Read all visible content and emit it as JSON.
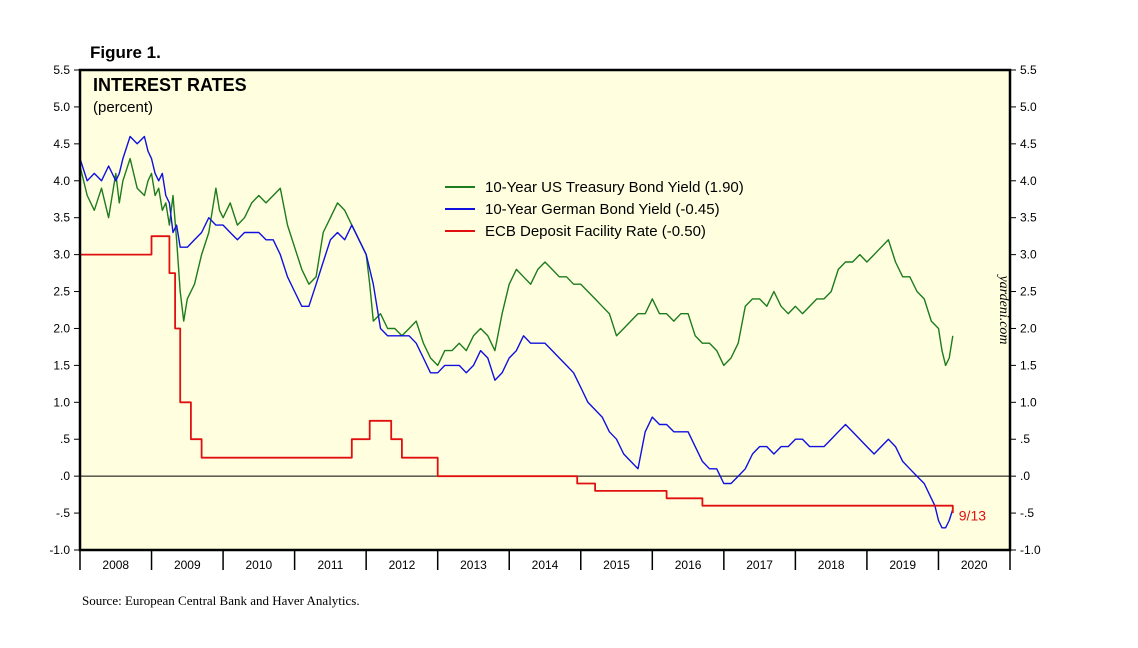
{
  "figure_label": "Figure 1.",
  "source": "Source: European Central Bank and Haver Analytics.",
  "watermark": "yardeni.com",
  "colors": {
    "background": "#ffffe0",
    "us": "#1e7b1e",
    "german": "#1010e0",
    "ecb": "#e01010"
  },
  "chart_data": {
    "type": "line",
    "title": "INTEREST RATES",
    "subtitle": "(percent)",
    "ylim": [
      -1.0,
      5.5
    ],
    "xlim": [
      2007.5,
      2020.5
    ],
    "y_ticks": [
      {
        "value": 5.5,
        "label": "5.5"
      },
      {
        "value": 5.0,
        "label": "5.0"
      },
      {
        "value": 4.5,
        "label": "4.5"
      },
      {
        "value": 4.0,
        "label": "4.0"
      },
      {
        "value": 3.5,
        "label": "3.5"
      },
      {
        "value": 3.0,
        "label": "3.0"
      },
      {
        "value": 2.5,
        "label": "2.5"
      },
      {
        "value": 2.0,
        "label": "2.0"
      },
      {
        "value": 1.5,
        "label": "1.5"
      },
      {
        "value": 1.0,
        "label": "1.0"
      },
      {
        "value": 0.5,
        "label": ".5"
      },
      {
        "value": 0.0,
        "label": ".0"
      },
      {
        "value": -0.5,
        "label": "-.5"
      },
      {
        "value": -1.0,
        "label": "-1.0"
      }
    ],
    "x_labels": [
      "2008",
      "2009",
      "2010",
      "2011",
      "2012",
      "2013",
      "2014",
      "2015",
      "2016",
      "2017",
      "2018",
      "2019",
      "2020"
    ],
    "annotation": {
      "text": "9/13",
      "x": 2019.7,
      "y": -0.52
    },
    "series": [
      {
        "name": "10-Year US Treasury Bond Yield (1.90)",
        "key": "us",
        "step": false,
        "x": [
          2007.5,
          2007.6,
          2007.7,
          2007.8,
          2007.9,
          2008.0,
          2008.05,
          2008.1,
          2008.2,
          2008.3,
          2008.4,
          2008.45,
          2008.5,
          2008.55,
          2008.6,
          2008.65,
          2008.7,
          2008.75,
          2008.8,
          2008.85,
          2008.9,
          2008.95,
          2009.0,
          2009.1,
          2009.2,
          2009.3,
          2009.4,
          2009.45,
          2009.5,
          2009.6,
          2009.7,
          2009.8,
          2009.9,
          2010.0,
          2010.1,
          2010.2,
          2010.3,
          2010.4,
          2010.5,
          2010.6,
          2010.7,
          2010.8,
          2010.9,
          2011.0,
          2011.1,
          2011.2,
          2011.3,
          2011.4,
          2011.5,
          2011.55,
          2011.6,
          2011.7,
          2011.8,
          2011.9,
          2012.0,
          2012.1,
          2012.2,
          2012.3,
          2012.4,
          2012.5,
          2012.6,
          2012.7,
          2012.8,
          2012.9,
          2013.0,
          2013.1,
          2013.2,
          2013.3,
          2013.4,
          2013.5,
          2013.6,
          2013.7,
          2013.8,
          2013.9,
          2014.0,
          2014.1,
          2014.2,
          2014.3,
          2014.4,
          2014.5,
          2014.6,
          2014.7,
          2014.8,
          2014.9,
          2015.0,
          2015.1,
          2015.2,
          2015.3,
          2015.4,
          2015.5,
          2015.6,
          2015.7,
          2015.8,
          2015.9,
          2016.0,
          2016.1,
          2016.2,
          2016.3,
          2016.4,
          2016.5,
          2016.6,
          2016.7,
          2016.8,
          2016.9,
          2017.0,
          2017.1,
          2017.2,
          2017.3,
          2017.4,
          2017.5,
          2017.6,
          2017.7,
          2017.8,
          2017.9,
          2018.0,
          2018.1,
          2018.2,
          2018.3,
          2018.4,
          2018.5,
          2018.6,
          2018.7,
          2018.8,
          2018.9,
          2019.0,
          2019.1,
          2019.2,
          2019.3,
          2019.4,
          2019.5,
          2019.55,
          2019.6,
          2019.65,
          2019.7
        ],
        "y": [
          4.2,
          3.8,
          3.6,
          3.9,
          3.5,
          4.1,
          3.7,
          4.0,
          4.3,
          3.9,
          3.8,
          4.0,
          4.1,
          3.8,
          3.9,
          3.6,
          3.7,
          3.4,
          3.8,
          3.2,
          2.5,
          2.1,
          2.4,
          2.6,
          3.0,
          3.3,
          3.9,
          3.6,
          3.5,
          3.7,
          3.4,
          3.5,
          3.7,
          3.8,
          3.7,
          3.8,
          3.9,
          3.4,
          3.1,
          2.8,
          2.6,
          2.7,
          3.3,
          3.5,
          3.7,
          3.6,
          3.4,
          3.2,
          3.0,
          2.6,
          2.1,
          2.2,
          2.0,
          2.0,
          1.9,
          2.0,
          2.1,
          1.8,
          1.6,
          1.5,
          1.7,
          1.7,
          1.8,
          1.7,
          1.9,
          2.0,
          1.9,
          1.7,
          2.2,
          2.6,
          2.8,
          2.7,
          2.6,
          2.8,
          2.9,
          2.8,
          2.7,
          2.7,
          2.6,
          2.6,
          2.5,
          2.4,
          2.3,
          2.2,
          1.9,
          2.0,
          2.1,
          2.2,
          2.2,
          2.4,
          2.2,
          2.2,
          2.1,
          2.2,
          2.2,
          1.9,
          1.8,
          1.8,
          1.7,
          1.5,
          1.6,
          1.8,
          2.3,
          2.4,
          2.4,
          2.3,
          2.5,
          2.3,
          2.2,
          2.3,
          2.2,
          2.3,
          2.4,
          2.4,
          2.5,
          2.8,
          2.9,
          2.9,
          3.0,
          2.9,
          3.0,
          3.1,
          3.2,
          2.9,
          2.7,
          2.7,
          2.5,
          2.4,
          2.1,
          2.0,
          1.7,
          1.5,
          1.6,
          1.9
        ]
      },
      {
        "name": "10-Year German Bond Yield (-0.45)",
        "key": "german",
        "step": false,
        "x": [
          2007.5,
          2007.6,
          2007.7,
          2007.8,
          2007.9,
          2008.0,
          2008.05,
          2008.1,
          2008.2,
          2008.3,
          2008.4,
          2008.45,
          2008.5,
          2008.55,
          2008.6,
          2008.65,
          2008.7,
          2008.75,
          2008.8,
          2008.85,
          2008.9,
          2009.0,
          2009.1,
          2009.2,
          2009.3,
          2009.4,
          2009.5,
          2009.6,
          2009.7,
          2009.8,
          2009.9,
          2010.0,
          2010.1,
          2010.2,
          2010.3,
          2010.4,
          2010.5,
          2010.6,
          2010.7,
          2010.8,
          2010.9,
          2011.0,
          2011.1,
          2011.2,
          2011.3,
          2011.4,
          2011.5,
          2011.6,
          2011.7,
          2011.8,
          2011.9,
          2012.0,
          2012.1,
          2012.2,
          2012.3,
          2012.4,
          2012.5,
          2012.6,
          2012.7,
          2012.8,
          2012.9,
          2013.0,
          2013.1,
          2013.2,
          2013.3,
          2013.4,
          2013.5,
          2013.6,
          2013.7,
          2013.8,
          2013.9,
          2014.0,
          2014.1,
          2014.2,
          2014.3,
          2014.4,
          2014.5,
          2014.6,
          2014.7,
          2014.8,
          2014.9,
          2015.0,
          2015.1,
          2015.2,
          2015.3,
          2015.4,
          2015.5,
          2015.6,
          2015.7,
          2015.8,
          2015.9,
          2016.0,
          2016.1,
          2016.2,
          2016.3,
          2016.4,
          2016.5,
          2016.6,
          2016.7,
          2016.8,
          2016.9,
          2017.0,
          2017.1,
          2017.2,
          2017.3,
          2017.4,
          2017.5,
          2017.6,
          2017.7,
          2017.8,
          2017.9,
          2018.0,
          2018.1,
          2018.2,
          2018.3,
          2018.4,
          2018.5,
          2018.6,
          2018.7,
          2018.8,
          2018.9,
          2019.0,
          2019.1,
          2019.2,
          2019.3,
          2019.4,
          2019.45,
          2019.5,
          2019.55,
          2019.6,
          2019.65,
          2019.7
        ],
        "y": [
          4.3,
          4.0,
          4.1,
          4.0,
          4.2,
          4.0,
          4.1,
          4.3,
          4.6,
          4.5,
          4.6,
          4.4,
          4.3,
          4.1,
          4.0,
          4.1,
          3.8,
          3.7,
          3.3,
          3.4,
          3.1,
          3.1,
          3.2,
          3.3,
          3.5,
          3.4,
          3.4,
          3.3,
          3.2,
          3.3,
          3.3,
          3.3,
          3.2,
          3.2,
          3.0,
          2.7,
          2.5,
          2.3,
          2.3,
          2.6,
          2.9,
          3.2,
          3.3,
          3.2,
          3.4,
          3.2,
          3.0,
          2.6,
          2.0,
          1.9,
          1.9,
          1.9,
          1.9,
          1.8,
          1.6,
          1.4,
          1.4,
          1.5,
          1.5,
          1.5,
          1.4,
          1.5,
          1.7,
          1.6,
          1.3,
          1.4,
          1.6,
          1.7,
          1.9,
          1.8,
          1.8,
          1.8,
          1.7,
          1.6,
          1.5,
          1.4,
          1.2,
          1.0,
          0.9,
          0.8,
          0.6,
          0.5,
          0.3,
          0.2,
          0.1,
          0.6,
          0.8,
          0.7,
          0.7,
          0.6,
          0.6,
          0.6,
          0.4,
          0.2,
          0.1,
          0.1,
          -0.1,
          -0.1,
          0.0,
          0.1,
          0.3,
          0.4,
          0.4,
          0.3,
          0.4,
          0.4,
          0.5,
          0.5,
          0.4,
          0.4,
          0.4,
          0.5,
          0.6,
          0.7,
          0.6,
          0.5,
          0.4,
          0.3,
          0.4,
          0.5,
          0.4,
          0.2,
          0.1,
          0.0,
          -0.1,
          -0.3,
          -0.4,
          -0.6,
          -0.7,
          -0.7,
          -0.6,
          -0.45
        ]
      },
      {
        "name": "ECB Deposit Facility Rate (-0.50)",
        "key": "ecb",
        "step": true,
        "x": [
          2007.5,
          2008.0,
          2008.5,
          2008.75,
          2008.83,
          2008.9,
          2009.05,
          2009.2,
          2009.3,
          2011.3,
          2011.55,
          2011.85,
          2012.0,
          2012.5,
          2014.45,
          2014.7,
          2015.7,
          2016.2,
          2019.7
        ],
        "y": [
          3.0,
          3.0,
          3.25,
          2.75,
          2.0,
          1.0,
          0.5,
          0.25,
          0.25,
          0.5,
          0.75,
          0.5,
          0.25,
          0.0,
          -0.1,
          -0.2,
          -0.3,
          -0.4,
          -0.5
        ]
      }
    ]
  }
}
